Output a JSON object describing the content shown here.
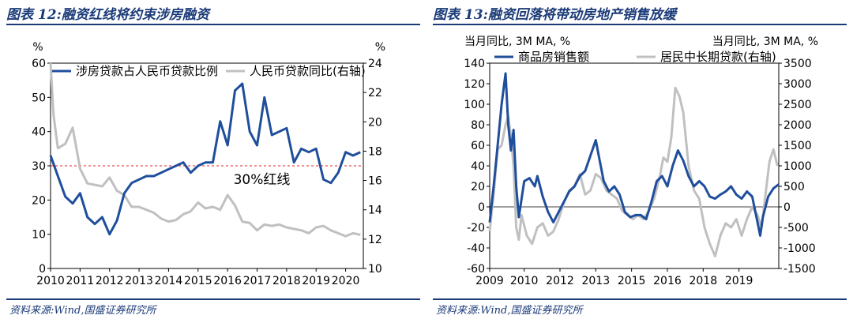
{
  "charts": [
    {
      "title": "图表 12:融资红线将约束涉房融资",
      "source": "资料来源:Wind,国盛证券研究所",
      "left_unit": "%",
      "right_unit": "%",
      "annotation": "30%红线",
      "threshold": 30,
      "colors": {
        "primary": "#1f4e9c",
        "secondary": "#c0c0c0",
        "threshold": "#e02020"
      },
      "chart_data": {
        "type": "line",
        "x_ticks": [
          "2010",
          "2011",
          "2012",
          "2013",
          "2014",
          "2015",
          "2016",
          "2017",
          "2018",
          "2019",
          "2020"
        ],
        "xlim": [
          2010,
          2020.6
        ],
        "ylim_left": [
          0,
          60
        ],
        "ylim_right": [
          10,
          24
        ],
        "y_ticks_left": [
          0,
          10,
          20,
          30,
          40,
          50,
          60
        ],
        "y_ticks_right": [
          10,
          12,
          14,
          16,
          18,
          20,
          22,
          24
        ],
        "series": [
          {
            "name": "涉房贷款占人民币贷款比例",
            "axis": "left",
            "color": "#1f4e9c",
            "x": [
              2010,
              2010.25,
              2010.5,
              2010.75,
              2011,
              2011.25,
              2011.5,
              2011.75,
              2012,
              2012.25,
              2012.5,
              2012.75,
              2013,
              2013.25,
              2013.5,
              2013.75,
              2014,
              2014.25,
              2014.5,
              2014.75,
              2015,
              2015.25,
              2015.5,
              2015.75,
              2016,
              2016.25,
              2016.5,
              2016.75,
              2017,
              2017.25,
              2017.5,
              2017.75,
              2018,
              2018.25,
              2018.5,
              2018.75,
              2019,
              2019.25,
              2019.5,
              2019.75,
              2020,
              2020.25,
              2020.5
            ],
            "y": [
              33,
              27,
              21,
              19,
              22,
              15,
              13,
              15,
              10,
              14,
              22,
              25,
              26,
              27,
              27,
              28,
              29,
              30,
              31,
              28,
              30,
              31,
              31,
              43,
              36,
              52,
              54,
              40,
              36,
              50,
              39,
              40,
              41,
              31,
              35,
              34,
              35,
              26,
              25,
              28,
              34,
              33,
              34
            ]
          },
          {
            "name": "人民币贷款同比(右轴)",
            "axis": "right",
            "color": "#c0c0c0",
            "x": [
              2010,
              2010.1,
              2010.25,
              2010.5,
              2010.75,
              2011,
              2011.25,
              2011.5,
              2011.75,
              2012,
              2012.25,
              2012.5,
              2012.75,
              2013,
              2013.25,
              2013.5,
              2013.75,
              2014,
              2014.25,
              2014.5,
              2014.75,
              2015,
              2015.25,
              2015.5,
              2015.75,
              2016,
              2016.25,
              2016.5,
              2016.75,
              2017,
              2017.25,
              2017.5,
              2017.75,
              2018,
              2018.25,
              2018.5,
              2018.75,
              2019,
              2019.25,
              2019.5,
              2019.75,
              2020,
              2020.25,
              2020.5
            ],
            "y": [
              24,
              20.5,
              18.2,
              18.5,
              19.6,
              16.8,
              15.8,
              15.7,
              15.6,
              16.2,
              15.3,
              15.0,
              14.2,
              14.2,
              14.0,
              13.8,
              13.4,
              13.2,
              13.3,
              13.7,
              13.9,
              14.5,
              14.1,
              14.2,
              14.0,
              15.0,
              14.3,
              13.2,
              13.1,
              12.6,
              13.0,
              12.9,
              13.0,
              12.8,
              12.7,
              12.6,
              12.4,
              12.8,
              12.9,
              12.6,
              12.4,
              12.2,
              12.4,
              12.3
            ]
          }
        ]
      }
    },
    {
      "title": "图表 13:融资回落将带动房地产销售放缓",
      "source": "资料来源:Wind,国盛证券研究所",
      "left_unit": "当月同比, 3M MA, %",
      "right_unit": "当月同比, 3M MA, %",
      "colors": {
        "primary": "#1f4e9c",
        "secondary": "#c0c0c0"
      },
      "chart_data": {
        "type": "line",
        "x_ticks": [
          "2009",
          "2010",
          "2012",
          "2013",
          "2015",
          "2016",
          "2018",
          "2019"
        ],
        "x_tick_pos": [
          2009,
          2010.3,
          2011.65,
          2013,
          2014.35,
          2015.7,
          2017.05,
          2018.4
        ],
        "xlim": [
          2009,
          2019.9
        ],
        "ylim_left": [
          -60,
          140
        ],
        "ylim_right": [
          -1500,
          3500
        ],
        "y_ticks_left": [
          -60,
          -40,
          -20,
          0,
          20,
          40,
          60,
          80,
          100,
          120,
          140
        ],
        "y_ticks_right": [
          -1500,
          -1000,
          -500,
          0,
          500,
          1000,
          1500,
          2000,
          2500,
          3000,
          3500
        ],
        "series": [
          {
            "name": "商品房销售额",
            "axis": "left",
            "color": "#1f4e9c",
            "x": [
              2009,
              2009.15,
              2009.3,
              2009.45,
              2009.6,
              2009.7,
              2009.8,
              2009.9,
              2010,
              2010.1,
              2010.3,
              2010.5,
              2010.7,
              2010.8,
              2011,
              2011.2,
              2011.4,
              2011.6,
              2011.8,
              2012,
              2012.2,
              2012.4,
              2012.6,
              2012.8,
              2013,
              2013.15,
              2013.3,
              2013.5,
              2013.7,
              2013.9,
              2014.1,
              2014.3,
              2014.5,
              2014.7,
              2014.9,
              2015.1,
              2015.3,
              2015.5,
              2015.7,
              2015.9,
              2016.1,
              2016.3,
              2016.5,
              2016.7,
              2016.9,
              2017.1,
              2017.3,
              2017.5,
              2017.7,
              2017.9,
              2018.1,
              2018.3,
              2018.5,
              2018.7,
              2018.9,
              2019.1,
              2019.2,
              2019.3,
              2019.5,
              2019.7,
              2019.9
            ],
            "y": [
              -15,
              20,
              60,
              100,
              130,
              80,
              55,
              75,
              20,
              -10,
              25,
              28,
              20,
              30,
              10,
              -5,
              -15,
              -5,
              5,
              15,
              20,
              30,
              35,
              50,
              65,
              45,
              25,
              15,
              20,
              12,
              -5,
              -10,
              -8,
              -8,
              -12,
              5,
              25,
              30,
              20,
              40,
              55,
              45,
              30,
              20,
              25,
              20,
              10,
              8,
              12,
              15,
              20,
              12,
              8,
              15,
              10,
              -15,
              -28,
              -10,
              10,
              18,
              22
            ]
          },
          {
            "name": "居民中长期贷款(右轴)",
            "axis": "right",
            "color": "#c0c0c0",
            "x": [
              2009,
              2009.15,
              2009.3,
              2009.45,
              2009.6,
              2009.7,
              2009.8,
              2009.9,
              2010,
              2010.1,
              2010.2,
              2010.4,
              2010.6,
              2010.8,
              2011,
              2011.2,
              2011.4,
              2011.6,
              2011.8,
              2012,
              2012.2,
              2012.4,
              2012.6,
              2012.8,
              2013,
              2013.2,
              2013.4,
              2013.6,
              2013.8,
              2014,
              2014.2,
              2014.4,
              2014.6,
              2014.8,
              2015,
              2015.2,
              2015.4,
              2015.55,
              2015.7,
              2015.85,
              2016,
              2016.15,
              2016.3,
              2016.5,
              2016.7,
              2016.9,
              2017.1,
              2017.3,
              2017.5,
              2017.7,
              2017.9,
              2018.1,
              2018.3,
              2018.5,
              2018.7,
              2018.9,
              2019.1,
              2019.25,
              2019.4,
              2019.55,
              2019.7,
              2019.85
            ],
            "y": [
              -600,
              300,
              1400,
              1500,
              2000,
              2200,
              1700,
              1000,
              -500,
              -800,
              -200,
              -700,
              -900,
              -500,
              -400,
              -700,
              -600,
              -300,
              100,
              400,
              500,
              800,
              300,
              400,
              800,
              700,
              400,
              300,
              200,
              -100,
              -200,
              -300,
              -200,
              -300,
              -100,
              200,
              700,
              1200,
              1100,
              1700,
              2900,
              2700,
              2300,
              1000,
              400,
              200,
              -500,
              -900,
              -1200,
              -700,
              -400,
              -500,
              -300,
              -700,
              -300,
              0,
              -200,
              -500,
              300,
              1100,
              1400,
              1000
            ]
          }
        ]
      }
    }
  ]
}
